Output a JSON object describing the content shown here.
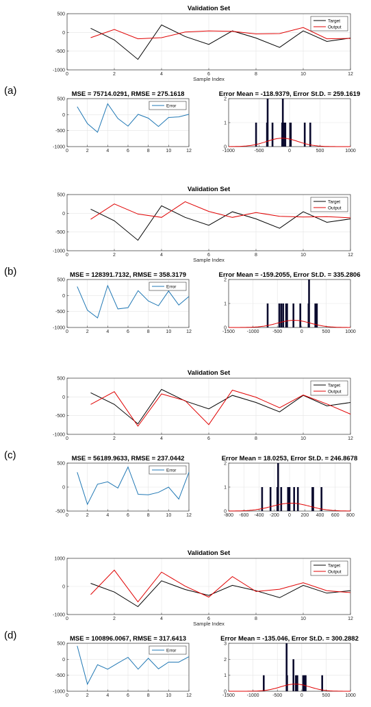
{
  "colors": {
    "target": "#000000",
    "output": "#e00000",
    "error": "#1f77b4",
    "hist_bar": "#0b0b2e",
    "fit": "#e00000",
    "grid": "#e4e4e4"
  },
  "chart_data": [
    {
      "panel": "(a)",
      "validation": {
        "type": "line",
        "title": "Validation Set",
        "xlabel": "Sample Index",
        "xlim": [
          0,
          12
        ],
        "ylim": [
          -1000,
          500
        ],
        "xticks": [
          0,
          2,
          4,
          6,
          8,
          10,
          12
        ],
        "yticks": [
          -1000,
          -500,
          0,
          500
        ],
        "x": [
          1,
          2,
          3,
          4,
          5,
          6,
          7,
          8,
          9,
          10,
          11,
          12
        ],
        "series": [
          {
            "name": "Target",
            "values": [
              110,
              -200,
              -720,
              200,
              -110,
              -320,
              40,
              -150,
              -400,
              40,
              -240,
              -150
            ]
          },
          {
            "name": "Output",
            "values": [
              -140,
              80,
              -170,
              -140,
              10,
              40,
              30,
              -40,
              -30,
              130,
              -170,
              -160
            ]
          }
        ]
      },
      "error": {
        "type": "line",
        "title": "MSE = 75714.0291, RMSE = 275.1618",
        "xlim": [
          0,
          12
        ],
        "ylim": [
          -1000,
          500
        ],
        "xticks": [
          0,
          2,
          4,
          6,
          8,
          10,
          12
        ],
        "yticks": [
          -1000,
          -500,
          0,
          500
        ],
        "x": [
          1,
          2,
          3,
          4,
          5,
          6,
          7,
          8,
          9,
          10,
          11,
          12
        ],
        "series": [
          {
            "name": "Error",
            "values": [
              250,
              -280,
              -550,
              340,
              -120,
              -360,
              10,
              -110,
              -370,
              -90,
              -70,
              10
            ]
          }
        ]
      },
      "histogram": {
        "type": "bar",
        "title": "Error Mean = -118.9379, Error St.D. = 259.1619",
        "xlim": [
          -1000,
          1000
        ],
        "ylim": [
          0,
          2
        ],
        "xticks": [
          -1000,
          -500,
          0,
          500,
          1000
        ],
        "yticks": [
          0,
          1,
          2
        ],
        "bars": [
          {
            "x": -550,
            "count": 1
          },
          {
            "x": -370,
            "count": 1
          },
          {
            "x": -360,
            "count": 2
          },
          {
            "x": -280,
            "count": 1
          },
          {
            "x": -120,
            "count": 1
          },
          {
            "x": -110,
            "count": 2
          },
          {
            "x": -90,
            "count": 1
          },
          {
            "x": -70,
            "count": 1
          },
          {
            "x": 10,
            "count": 1
          },
          {
            "x": 20,
            "count": 1
          },
          {
            "x": 250,
            "count": 1
          },
          {
            "x": 340,
            "count": 1
          }
        ],
        "fit": {
          "mean": -118.9379,
          "sd": 259.1619,
          "peak": 0.35
        }
      }
    },
    {
      "panel": "(b)",
      "validation": {
        "type": "line",
        "title": "Validation Set",
        "xlabel": "Sample Index",
        "xlim": [
          0,
          12
        ],
        "ylim": [
          -1000,
          500
        ],
        "xticks": [
          0,
          2,
          4,
          6,
          8,
          10,
          12
        ],
        "yticks": [
          -1000,
          -500,
          0,
          500
        ],
        "x": [
          1,
          2,
          3,
          4,
          5,
          6,
          7,
          8,
          9,
          10,
          11,
          12
        ],
        "series": [
          {
            "name": "Target",
            "values": [
              110,
              -200,
              -720,
              200,
              -110,
              -320,
              40,
              -150,
              -400,
              40,
              -240,
              -150
            ]
          },
          {
            "name": "Output",
            "values": [
              -160,
              250,
              -20,
              -110,
              310,
              50,
              -110,
              20,
              -80,
              -100,
              -90,
              -120
            ]
          }
        ]
      },
      "error": {
        "type": "line",
        "title": "MSE = 128391.7132, RMSE = 358.3179",
        "xlim": [
          0,
          12
        ],
        "ylim": [
          -1000,
          500
        ],
        "xticks": [
          0,
          2,
          4,
          6,
          8,
          10,
          12
        ],
        "yticks": [
          -1000,
          -500,
          0,
          500
        ],
        "x": [
          1,
          2,
          3,
          4,
          5,
          6,
          7,
          8,
          9,
          10,
          11,
          12
        ],
        "series": [
          {
            "name": "Error",
            "values": [
              280,
              -460,
              -700,
              310,
              -420,
              -380,
              150,
              -170,
              -320,
              140,
              -300,
              -30
            ]
          }
        ]
      },
      "histogram": {
        "type": "bar",
        "title": "Error Mean = -159.2055, Error St.D. = 335.2806",
        "xlim": [
          -1500,
          1000
        ],
        "ylim": [
          0,
          2
        ],
        "xticks": [
          -1500,
          -1000,
          -500,
          0,
          500,
          1000
        ],
        "yticks": [
          0,
          1,
          2
        ],
        "bars": [
          {
            "x": -700,
            "count": 1
          },
          {
            "x": -460,
            "count": 1
          },
          {
            "x": -420,
            "count": 1
          },
          {
            "x": -380,
            "count": 1
          },
          {
            "x": -320,
            "count": 1
          },
          {
            "x": -300,
            "count": 1
          },
          {
            "x": -170,
            "count": 1
          },
          {
            "x": -30,
            "count": 1
          },
          {
            "x": 140,
            "count": 1
          },
          {
            "x": 150,
            "count": 2
          },
          {
            "x": 280,
            "count": 1
          },
          {
            "x": 310,
            "count": 1
          }
        ],
        "fit": {
          "mean": -159.2055,
          "sd": 335.2806,
          "peak": 0.3
        }
      }
    },
    {
      "panel": "(c)",
      "validation": {
        "type": "line",
        "title": "Validation Set",
        "xlabel": "",
        "xlim": [
          0,
          12
        ],
        "ylim": [
          -1000,
          500
        ],
        "xticks": [
          0,
          2,
          4,
          6,
          8,
          10,
          12
        ],
        "yticks": [
          -1000,
          -500,
          0,
          500
        ],
        "x": [
          1,
          2,
          3,
          4,
          5,
          6,
          7,
          8,
          9,
          10,
          11,
          12
        ],
        "series": [
          {
            "name": "Target",
            "values": [
              110,
              -200,
              -720,
              200,
              -110,
              -320,
              40,
              -150,
              -400,
              40,
              -240,
              -150
            ]
          },
          {
            "name": "Output",
            "values": [
              -200,
              140,
              -780,
              80,
              -100,
              -740,
              180,
              -10,
              -290,
              50,
              -190,
              -460
            ]
          }
        ]
      },
      "error": {
        "type": "line",
        "title": "MSE = 56189.9633, RMSE = 237.0442",
        "xlim": [
          0,
          12
        ],
        "ylim": [
          -500,
          500
        ],
        "xticks": [
          0,
          2,
          4,
          6,
          8,
          10,
          12
        ],
        "yticks": [
          -500,
          0,
          500
        ],
        "x": [
          1,
          2,
          3,
          4,
          5,
          6,
          7,
          8,
          9,
          10,
          11,
          12
        ],
        "series": [
          {
            "name": "Error",
            "values": [
              310,
              -360,
              60,
              110,
              -20,
              420,
              -150,
              -160,
              -110,
              0,
              -250,
              310
            ]
          }
        ]
      },
      "histogram": {
        "type": "bar",
        "title": "Error Mean = 18.0253, Error St.D. = 246.8678",
        "xlim": [
          -800,
          800
        ],
        "ylim": [
          0,
          2
        ],
        "xticks": [
          -800,
          -600,
          -400,
          -200,
          0,
          200,
          400,
          600,
          800
        ],
        "yticks": [
          0,
          1,
          2
        ],
        "bars": [
          {
            "x": -360,
            "count": 1
          },
          {
            "x": -250,
            "count": 1
          },
          {
            "x": -160,
            "count": 1
          },
          {
            "x": -150,
            "count": 2
          },
          {
            "x": -110,
            "count": 1
          },
          {
            "x": -20,
            "count": 1
          },
          {
            "x": 0,
            "count": 1
          },
          {
            "x": 60,
            "count": 1
          },
          {
            "x": 110,
            "count": 1
          },
          {
            "x": 300,
            "count": 1
          },
          {
            "x": 310,
            "count": 1
          },
          {
            "x": 420,
            "count": 1
          }
        ],
        "fit": {
          "mean": 18.0253,
          "sd": 246.8678,
          "peak": 0.33
        }
      }
    },
    {
      "panel": "(d)",
      "validation": {
        "type": "line",
        "title": "Validation Set",
        "xlabel": "Sample Index",
        "xlim": [
          0,
          12
        ],
        "ylim": [
          -1000,
          1000
        ],
        "xticks": [
          0,
          2,
          4,
          6,
          8,
          10,
          12
        ],
        "yticks": [
          -1000,
          0,
          1000
        ],
        "x": [
          1,
          2,
          3,
          4,
          5,
          6,
          7,
          8,
          9,
          10,
          11,
          12
        ],
        "series": [
          {
            "name": "Target",
            "values": [
              110,
              -200,
              -720,
              200,
              -110,
              -320,
              40,
              -150,
              -400,
              40,
              -240,
              -150
            ]
          },
          {
            "name": "Output",
            "values": [
              -290,
              580,
              -550,
              510,
              10,
              -380,
              350,
              -180,
              -100,
              130,
              -150,
              -220
            ]
          }
        ]
      },
      "error": {
        "type": "line",
        "title": "MSE = 100896.0067, RMSE = 317.6413",
        "xlim": [
          0,
          12
        ],
        "ylim": [
          -1000,
          500
        ],
        "xticks": [
          0,
          2,
          4,
          6,
          8,
          10,
          12
        ],
        "yticks": [
          -1000,
          -500,
          0,
          500
        ],
        "x": [
          1,
          2,
          3,
          4,
          5,
          6,
          7,
          8,
          9,
          10,
          11,
          12
        ],
        "series": [
          {
            "name": "Error",
            "values": [
              420,
              -780,
              -170,
              -310,
              -120,
              60,
              -310,
              30,
              -300,
              -90,
              -90,
              80
            ]
          }
        ]
      },
      "histogram": {
        "type": "bar",
        "title": "Error Mean = -135.046, Error St.D. = 300.2882",
        "xlim": [
          -1500,
          1000
        ],
        "ylim": [
          0,
          3
        ],
        "xticks": [
          -1500,
          -1000,
          -500,
          0,
          500,
          1000
        ],
        "yticks": [
          0,
          1,
          2,
          3
        ],
        "bars": [
          {
            "x": -780,
            "count": 1
          },
          {
            "x": -310,
            "count": 3
          },
          {
            "x": -300,
            "count": 1
          },
          {
            "x": -170,
            "count": 2
          },
          {
            "x": -120,
            "count": 1
          },
          {
            "x": -90,
            "count": 1
          },
          {
            "x": 30,
            "count": 1
          },
          {
            "x": 60,
            "count": 1
          },
          {
            "x": 80,
            "count": 1
          },
          {
            "x": 420,
            "count": 1
          }
        ],
        "fit": {
          "mean": -135.046,
          "sd": 300.2882,
          "peak": 0.45
        }
      }
    }
  ]
}
